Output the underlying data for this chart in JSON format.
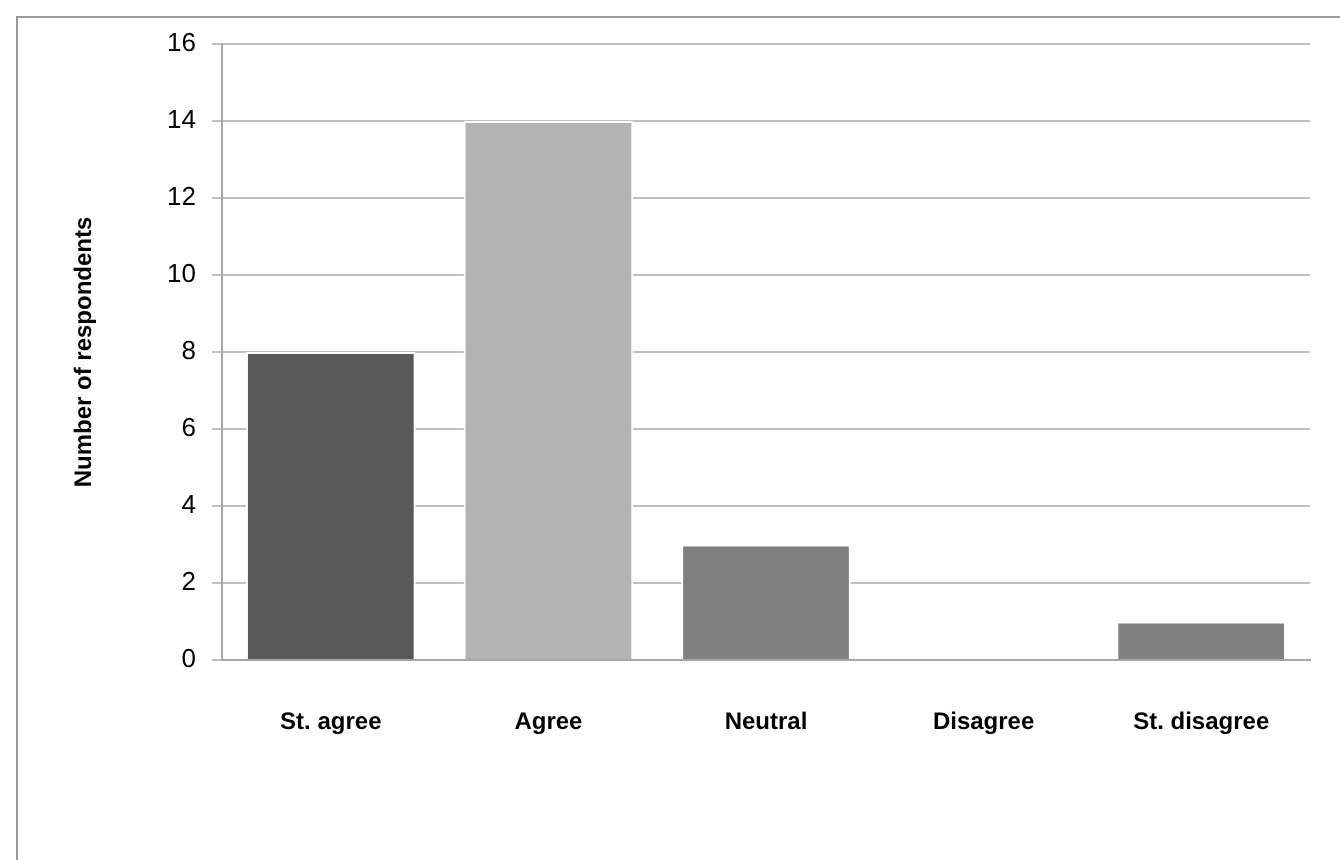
{
  "chart_data": {
    "type": "bar",
    "ylabel": "Number of respondents",
    "categories": [
      "St. agree",
      "Agree",
      "Neutral",
      "Disagree",
      "St. disagree"
    ],
    "values": [
      8,
      14,
      3,
      0,
      1
    ],
    "colors": [
      "#595959",
      "#b3b3b3",
      "#808080",
      "#808080",
      "#808080"
    ],
    "ylim": [
      0,
      16
    ],
    "yticks": [
      0,
      2,
      4,
      6,
      8,
      10,
      12,
      14,
      16
    ],
    "grid": "y",
    "legend": false
  }
}
